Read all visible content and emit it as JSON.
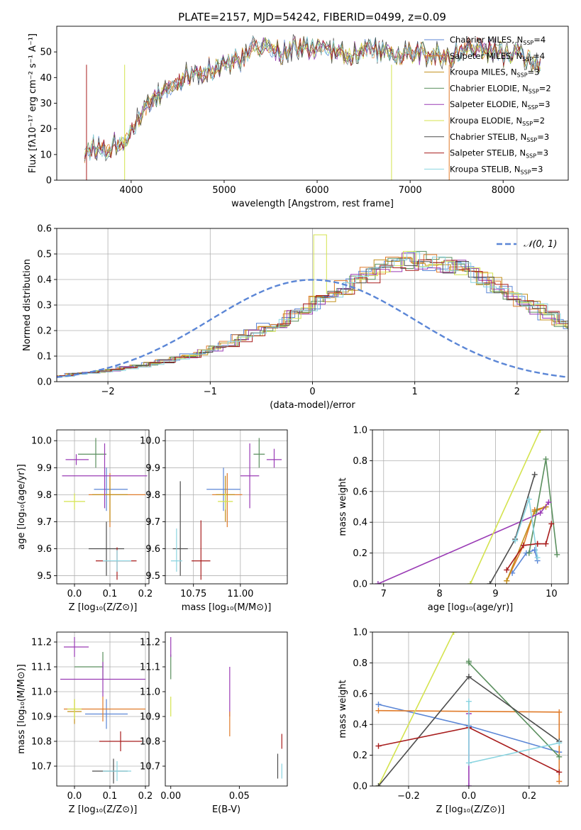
{
  "figure": {
    "title": "PLATE=2157, MJD=54242, FIBERID=0499, z=0.09",
    "models": [
      {
        "name": "Chabrier MILES, N",
        "sub": "SSP",
        "tail": "=4",
        "color": "#5b86d6"
      },
      {
        "name": "Salpeter MILES, N",
        "sub": "SSP",
        "tail": "=4",
        "color": "#e07b2a"
      },
      {
        "name": "Kroupa MILES, N",
        "sub": "SSP",
        "tail": "=3",
        "color": "#c2901b"
      },
      {
        "name": "Chabrier ELODIE, N",
        "sub": "SSP",
        "tail": "=2",
        "color": "#5a8f5e"
      },
      {
        "name": "Salpeter ELODIE, N",
        "sub": "SSP",
        "tail": "=3",
        "color": "#9a3bb5"
      },
      {
        "name": "Kroupa ELODIE, N",
        "sub": "SSP",
        "tail": "=2",
        "color": "#d4e34e"
      },
      {
        "name": "Chabrier STELIB, N",
        "sub": "SSP",
        "tail": "=3",
        "color": "#4d4d4d"
      },
      {
        "name": "Salpeter STELIB, N",
        "sub": "SSP",
        "tail": "=3",
        "color": "#a81d1d"
      },
      {
        "name": "Kroupa STELIB, N",
        "sub": "SSP",
        "tail": "=3",
        "color": "#8ad4e0"
      }
    ]
  },
  "chart_data": [
    {
      "id": "spectrum",
      "type": "line",
      "xlabel": "wavelength [Angstrom, rest frame]",
      "ylabel": "Flux [fλ10⁻¹⁷ erg cm⁻² s⁻¹ A⁻¹]",
      "xlim": [
        3200,
        8700
      ],
      "ylim": [
        0,
        60
      ],
      "xticks": [
        4000,
        5000,
        6000,
        7000,
        8000
      ],
      "yticks": [
        0,
        10,
        20,
        30,
        40,
        50
      ],
      "grid": false,
      "legend": "upper right",
      "x": [
        3500,
        3600,
        3700,
        3800,
        3900,
        4000,
        4100,
        4200,
        4300,
        4400,
        4500,
        4600,
        4700,
        4800,
        4900,
        5000,
        5100,
        5200,
        5300,
        5400,
        5500,
        5600,
        5700,
        5800,
        5900,
        6000,
        6100,
        6200,
        6300,
        6400,
        6500,
        6600,
        6700,
        6800,
        6900,
        7000,
        7100,
        7200,
        7300,
        7400,
        7500,
        7600,
        7700,
        7800,
        7900,
        8000,
        8100,
        8200,
        8300,
        8400
      ],
      "y": [
        11,
        13,
        12,
        14,
        15,
        20,
        25,
        29,
        33,
        36,
        39,
        41,
        42,
        43,
        44,
        45,
        46,
        47,
        51,
        52,
        51,
        50,
        51,
        52,
        51,
        50,
        51,
        50,
        49,
        50,
        50,
        51,
        50,
        50,
        49,
        50,
        49,
        49,
        49,
        48,
        50,
        52,
        52,
        50,
        51,
        49,
        49,
        48,
        47,
        44
      ],
      "dips": [
        {
          "x": 3520,
          "y": 0,
          "series": 7
        },
        {
          "x": 3930,
          "y": 0,
          "series": 5
        },
        {
          "x": 6800,
          "y": 0,
          "series": 5
        },
        {
          "x": 7420,
          "y": 0,
          "series": 1
        }
      ]
    },
    {
      "id": "residuals",
      "type": "histogram",
      "xlabel": "(data-model)/error",
      "ylabel": "Normed distribution",
      "xlim": [
        -2.5,
        2.5
      ],
      "ylim": [
        0,
        0.6
      ],
      "xticks": [
        -2,
        -1,
        0,
        1,
        2
      ],
      "yticks": [
        0.0,
        0.1,
        0.2,
        0.3,
        0.4,
        0.5,
        0.6
      ],
      "grid": true,
      "legend": "upper right",
      "reference": {
        "label": "𝒩(0, 1)",
        "mu": 0,
        "sigma": 1,
        "color": "#5b86d6"
      },
      "bin_width": 0.125,
      "bin_start": -2.5,
      "bin_values_template": [
        0.022,
        0.03,
        0.035,
        0.04,
        0.045,
        0.055,
        0.06,
        0.07,
        0.08,
        0.09,
        0.1,
        0.115,
        0.13,
        0.15,
        0.17,
        0.19,
        0.21,
        0.23,
        0.26,
        0.29,
        0.31,
        0.34,
        0.37,
        0.39,
        0.42,
        0.44,
        0.46,
        0.47,
        0.48,
        0.47,
        0.46,
        0.44,
        0.42,
        0.4,
        0.38,
        0.35,
        0.32,
        0.29,
        0.26,
        0.23,
        0.2,
        0.17,
        0.14,
        0.115,
        0.09,
        0.07,
        0.055,
        0.045,
        0.035,
        0.03,
        0.025,
        0.022,
        0.02,
        0.018,
        0.016,
        0.014,
        0.013,
        0.012,
        0.011,
        0.01
      ],
      "notable": {
        "series": 5,
        "bin_center": 0.125,
        "value": 0.575
      }
    },
    {
      "id": "z-age",
      "type": "errorbar",
      "xlabel": "Z [log₁₀(Z/Z⊙)]",
      "ylabel": "age  [log₁₀(age/yr)]",
      "xlim": [
        -0.05,
        0.21
      ],
      "ylim": [
        9.47,
        10.04
      ],
      "xticks": [
        0.0,
        0.1,
        0.2
      ],
      "yticks": [
        9.5,
        9.6,
        9.7,
        9.8,
        9.9,
        10.0
      ],
      "grid": true,
      "points": [
        {
          "series": 0,
          "x": 0.09,
          "y": 9.82,
          "xerr": [
            0.035,
            0.06
          ],
          "yerr": [
            0.08,
            0.08
          ]
        },
        {
          "series": 1,
          "x": 0.1,
          "y": 9.8,
          "xerr": [
            0.06,
            0.1
          ],
          "yerr": [
            0.12,
            0.08
          ]
        },
        {
          "series": 2,
          "x": 0.1,
          "y": 9.8,
          "xerr": [
            0.05,
            0.05
          ],
          "yerr": [
            0.1,
            0.07
          ]
        },
        {
          "series": 3,
          "x": 0.06,
          "y": 9.95,
          "xerr": [
            0.05,
            0.03
          ],
          "yerr": [
            0.05,
            0.06
          ]
        },
        {
          "series": 4,
          "x": 0.005,
          "y": 9.93,
          "xerr": [
            0.03,
            0.035
          ],
          "yerr": [
            0.02,
            0.02
          ]
        },
        {
          "series": 5,
          "x": 0.0,
          "y": 9.775,
          "xerr": [
            0.03,
            0.03
          ],
          "yerr": [
            0.03,
            0.03
          ]
        },
        {
          "series": 6,
          "x": 0.09,
          "y": 9.6,
          "xerr": [
            0.05,
            0.05
          ],
          "yerr": [
            0.1,
            0.1
          ]
        },
        {
          "series": 7,
          "x": 0.12,
          "y": 9.555,
          "xerr": [
            0.06,
            0.055
          ],
          "yerr": [
            0.07,
            0.05
          ]
        },
        {
          "series": 8,
          "x": 0.12,
          "y": 9.555,
          "xerr": [
            0.04,
            0.04
          ],
          "yerr": [
            0.04,
            0.04
          ]
        },
        {
          "series": 4,
          "x": 0.085,
          "y": 9.87,
          "xerr": [
            0.12,
            0.12
          ],
          "yerr": [
            0.12,
            0.12
          ]
        }
      ]
    },
    {
      "id": "mass-age",
      "type": "errorbar",
      "xlabel": "mass [log₁₀(M/M⊙)]",
      "ylabel": "",
      "xlim": [
        10.6,
        11.25
      ],
      "ylim": [
        9.47,
        10.04
      ],
      "xticks": [
        10.75,
        11.0
      ],
      "yticks": [
        9.5,
        9.6,
        9.7,
        9.8,
        9.9,
        10.0
      ],
      "grid": true,
      "points": [
        {
          "series": 0,
          "x": 10.91,
          "y": 9.82,
          "xerr": [
            0.09,
            0.09
          ],
          "yerr": [
            0.08,
            0.08
          ]
        },
        {
          "series": 1,
          "x": 10.93,
          "y": 9.8,
          "xerr": [
            0.08,
            0.08
          ],
          "yerr": [
            0.12,
            0.08
          ]
        },
        {
          "series": 2,
          "x": 10.92,
          "y": 9.8,
          "xerr": [
            0.05,
            0.05
          ],
          "yerr": [
            0.1,
            0.07
          ]
        },
        {
          "series": 3,
          "x": 11.1,
          "y": 9.95,
          "xerr": [
            0.03,
            0.03
          ],
          "yerr": [
            0.05,
            0.06
          ]
        },
        {
          "series": 4,
          "x": 11.18,
          "y": 9.93,
          "xerr": [
            0.04,
            0.04
          ],
          "yerr": [
            0.03,
            0.04
          ]
        },
        {
          "series": 5,
          "x": 10.92,
          "y": 9.775,
          "xerr": [
            0.04,
            0.04
          ],
          "yerr": [
            0.03,
            0.03
          ]
        },
        {
          "series": 6,
          "x": 10.68,
          "y": 9.6,
          "xerr": [
            0.04,
            0.04
          ],
          "yerr": [
            0.1,
            0.25
          ]
        },
        {
          "series": 7,
          "x": 10.79,
          "y": 9.555,
          "xerr": [
            0.05,
            0.05
          ],
          "yerr": [
            0.07,
            0.15
          ]
        },
        {
          "series": 8,
          "x": 10.66,
          "y": 9.555,
          "xerr": [
            0.03,
            0.03
          ],
          "yerr": [
            0.04,
            0.12
          ]
        },
        {
          "series": 4,
          "x": 11.05,
          "y": 9.87,
          "xerr": [
            0.05,
            0.05
          ],
          "yerr": [
            0.12,
            0.12
          ]
        }
      ]
    },
    {
      "id": "age-weight",
      "type": "line",
      "xlabel": "age  [log₁₀(age/yr)]",
      "ylabel": "mass weight",
      "xlim": [
        6.8,
        10.3
      ],
      "ylim": [
        0,
        1
      ],
      "xticks": [
        7,
        8,
        9,
        10
      ],
      "yticks": [
        0.0,
        0.2,
        0.4,
        0.6,
        0.8,
        1.0
      ],
      "grid": true,
      "series": [
        {
          "series": 0,
          "x": [
            9.3,
            9.55,
            9.7,
            9.75
          ],
          "y": [
            0.07,
            0.2,
            0.22,
            0.15
          ]
        },
        {
          "series": 1,
          "x": [
            9.2,
            9.5,
            9.7,
            9.9
          ],
          "y": [
            0.02,
            0.25,
            0.48,
            0.5
          ]
        },
        {
          "series": 2,
          "x": [
            9.2,
            9.7,
            9.9
          ],
          "y": [
            0.02,
            0.47,
            0.5
          ]
        },
        {
          "series": 3,
          "x": [
            9.6,
            9.9,
            10.1
          ],
          "y": [
            0.2,
            0.81,
            0.19
          ]
        },
        {
          "series": 4,
          "x": [
            6.9,
            9.8,
            9.95
          ],
          "y": [
            0.0,
            0.46,
            0.53
          ]
        },
        {
          "series": 5,
          "x": [
            8.55,
            9.8
          ],
          "y": [
            0.0,
            1.0
          ]
        },
        {
          "series": 6,
          "x": [
            8.9,
            9.35,
            9.7
          ],
          "y": [
            0.0,
            0.29,
            0.71
          ]
        },
        {
          "series": 7,
          "x": [
            9.2,
            9.5,
            9.75
          ],
          "y": [
            0.09,
            0.25,
            0.26
          ]
        },
        {
          "series": 8,
          "x": [
            9.35,
            9.6,
            9.75
          ],
          "y": [
            0.28,
            0.55,
            0.17
          ]
        },
        {
          "series": 7,
          "x": [
            9.75,
            9.9,
            10.0
          ],
          "y": [
            0.26,
            0.26,
            0.39
          ]
        }
      ]
    },
    {
      "id": "z-mass",
      "type": "errorbar",
      "xlabel": "Z [log₁₀(Z/Z⊙)]",
      "ylabel": "mass [log₁₀(M/M⊙)]",
      "xlim": [
        -0.05,
        0.21
      ],
      "ylim": [
        10.62,
        11.24
      ],
      "xticks": [
        0.0,
        0.1,
        0.2
      ],
      "yticks": [
        10.7,
        10.8,
        10.9,
        11.0,
        11.1,
        11.2
      ],
      "grid": true,
      "points": [
        {
          "series": 0,
          "x": 0.09,
          "y": 10.91,
          "xerr": [
            0.06,
            0.06
          ],
          "yerr": [
            0.06,
            0.06
          ]
        },
        {
          "series": 1,
          "x": 0.08,
          "y": 10.93,
          "xerr": [
            0.11,
            0.12
          ],
          "yerr": [
            0.05,
            0.05
          ]
        },
        {
          "series": 2,
          "x": 0.0,
          "y": 10.92,
          "xerr": [
            0.02,
            0.02
          ],
          "yerr": [
            0.05,
            0.05
          ]
        },
        {
          "series": 3,
          "x": 0.08,
          "y": 11.1,
          "xerr": [
            0.08,
            0.0
          ],
          "yerr": [
            0.05,
            0.06
          ]
        },
        {
          "series": 4,
          "x": 0.0,
          "y": 11.18,
          "xerr": [
            0.03,
            0.04
          ],
          "yerr": [
            0.04,
            0.04
          ]
        },
        {
          "series": 5,
          "x": 0.0,
          "y": 10.93,
          "xerr": [
            0.02,
            0.02
          ],
          "yerr": [
            0.04,
            0.04
          ]
        },
        {
          "series": 6,
          "x": 0.11,
          "y": 10.68,
          "xerr": [
            0.06,
            0.04
          ],
          "yerr": [
            0.05,
            0.05
          ]
        },
        {
          "series": 7,
          "x": 0.13,
          "y": 10.8,
          "xerr": [
            0.06,
            0.06
          ],
          "yerr": [
            0.04,
            0.04
          ]
        },
        {
          "series": 8,
          "x": 0.12,
          "y": 10.68,
          "xerr": [
            0.04,
            0.04
          ],
          "yerr": [
            0.04,
            0.04
          ]
        },
        {
          "series": 4,
          "x": 0.08,
          "y": 11.05,
          "xerr": [
            0.12,
            0.12
          ],
          "yerr": [
            0.07,
            0.07
          ]
        }
      ]
    },
    {
      "id": "ebv-mass",
      "type": "errorbar",
      "xlabel": "E(B-V)",
      "ylabel": "",
      "xlim": [
        -0.004,
        0.085
      ],
      "ylim": [
        10.62,
        11.24
      ],
      "xticks": [
        0.0,
        0.05
      ],
      "yticks": [
        10.7,
        10.8,
        10.9,
        11.0,
        11.1,
        11.2
      ],
      "grid": false,
      "points": [
        {
          "series": 3,
          "x": 0.0,
          "y": 11.1,
          "xerr": [
            0,
            0
          ],
          "yerr": [
            0.05,
            0.05
          ]
        },
        {
          "series": 4,
          "x": 0.0,
          "y": 11.18,
          "xerr": [
            0,
            0
          ],
          "yerr": [
            0.04,
            0.04
          ]
        },
        {
          "series": 5,
          "x": 0.0,
          "y": 10.94,
          "xerr": [
            0,
            0
          ],
          "yerr": [
            0.04,
            0.04
          ]
        },
        {
          "series": 4,
          "x": 0.043,
          "y": 11.0,
          "xerr": [
            0,
            0
          ],
          "yerr": [
            0.1,
            0.1
          ]
        },
        {
          "series": 1,
          "x": 0.043,
          "y": 10.87,
          "xerr": [
            0,
            0
          ],
          "yerr": [
            0.05,
            0.05
          ]
        },
        {
          "series": 6,
          "x": 0.078,
          "y": 10.7,
          "xerr": [
            0,
            0
          ],
          "yerr": [
            0.05,
            0.05
          ]
        },
        {
          "series": 7,
          "x": 0.081,
          "y": 10.8,
          "xerr": [
            0,
            0
          ],
          "yerr": [
            0.03,
            0.03
          ]
        },
        {
          "series": 8,
          "x": 0.081,
          "y": 10.68,
          "xerr": [
            0,
            0
          ],
          "yerr": [
            0.03,
            0.03
          ]
        }
      ]
    },
    {
      "id": "z-weight",
      "type": "line",
      "xlabel": "Z [log₁₀(Z/Z⊙)]",
      "ylabel": "mass weight",
      "xlim": [
        -0.32,
        0.33
      ],
      "ylim": [
        0,
        1
      ],
      "xticks": [
        -0.2,
        0.0,
        0.2
      ],
      "yticks": [
        0.0,
        0.2,
        0.4,
        0.6,
        0.8,
        1.0
      ],
      "grid": true,
      "series": [
        {
          "series": 0,
          "x": [
            -0.3,
            0.0,
            0.3
          ],
          "y": [
            0.53,
            0.39,
            0.22
          ]
        },
        {
          "series": 1,
          "x": [
            -0.3,
            0.3,
            0.3
          ],
          "y": [
            0.49,
            0.48,
            0.03
          ]
        },
        {
          "series": 3,
          "x": [
            0.0,
            0.0,
            0.3
          ],
          "y": [
            0.81,
            0.8,
            0.19
          ]
        },
        {
          "series": 4,
          "x": [
            0.0,
            0.0
          ],
          "y": [
            0.0,
            0.47
          ]
        },
        {
          "series": 5,
          "x": [
            -0.3,
            -0.05
          ],
          "y": [
            0.0,
            1.0
          ]
        },
        {
          "series": 6,
          "x": [
            -0.3,
            0.0,
            0.3
          ],
          "y": [
            0.0,
            0.71,
            0.29
          ]
        },
        {
          "series": 7,
          "x": [
            -0.3,
            0.0,
            0.3
          ],
          "y": [
            0.26,
            0.38,
            0.09
          ]
        },
        {
          "series": 8,
          "x": [
            0.0,
            0.0,
            0.3
          ],
          "y": [
            0.55,
            0.15,
            0.28
          ]
        }
      ]
    }
  ]
}
